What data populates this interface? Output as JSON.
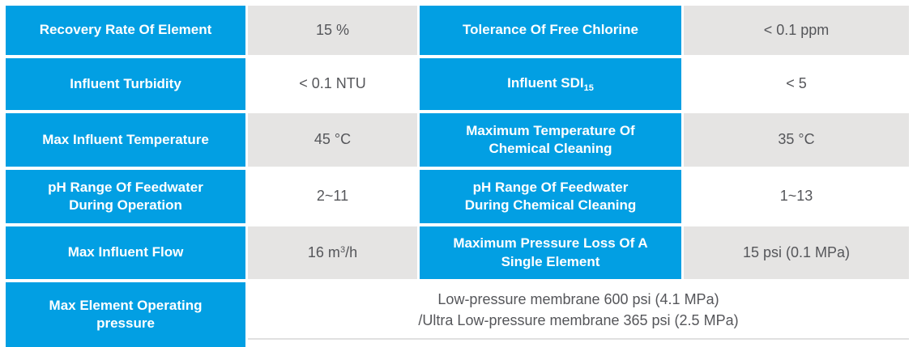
{
  "colors": {
    "blue": "#029FE3",
    "gray": "#E5E4E3",
    "text": "#55565A",
    "line": "#E0E0E0"
  },
  "rows": [
    {
      "h1": "Recovery Rate Of Element",
      "v1": "15 %",
      "h2": "Tolerance Of Free Chlorine",
      "v2": "< 0.1 ppm"
    },
    {
      "h1": "Influent Turbidity",
      "v1": "< 0.1 NTU",
      "h2_base": "Influent SDI",
      "h2_sub": "15",
      "v2": "< 5"
    },
    {
      "h1": "Max Influent Temperature",
      "v1": "45 °C",
      "h2": "Maximum Temperature Of Chemical Cleaning",
      "v2": "35 °C"
    },
    {
      "h1": "pH Range Of Feedwater During Operation",
      "v1": "2~11",
      "h2": "pH Range Of Feedwater During Chemical Cleaning",
      "v2": "1~13"
    },
    {
      "h1": "Max Influent Flow",
      "v1_base": "16 m",
      "v1_sup": "3",
      "v1_rest": "/h",
      "h2": "Maximum Pressure Loss Of A Single Element",
      "v2": "15 psi (0.1 MPa)"
    },
    {
      "h1": "Max Element Operating pressure",
      "v_line1": "Low-pressure membrane 600 psi (4.1 MPa)",
      "v_line2": "/Ultra Low-pressure membrane 365 psi (2.5 MPa)"
    }
  ]
}
